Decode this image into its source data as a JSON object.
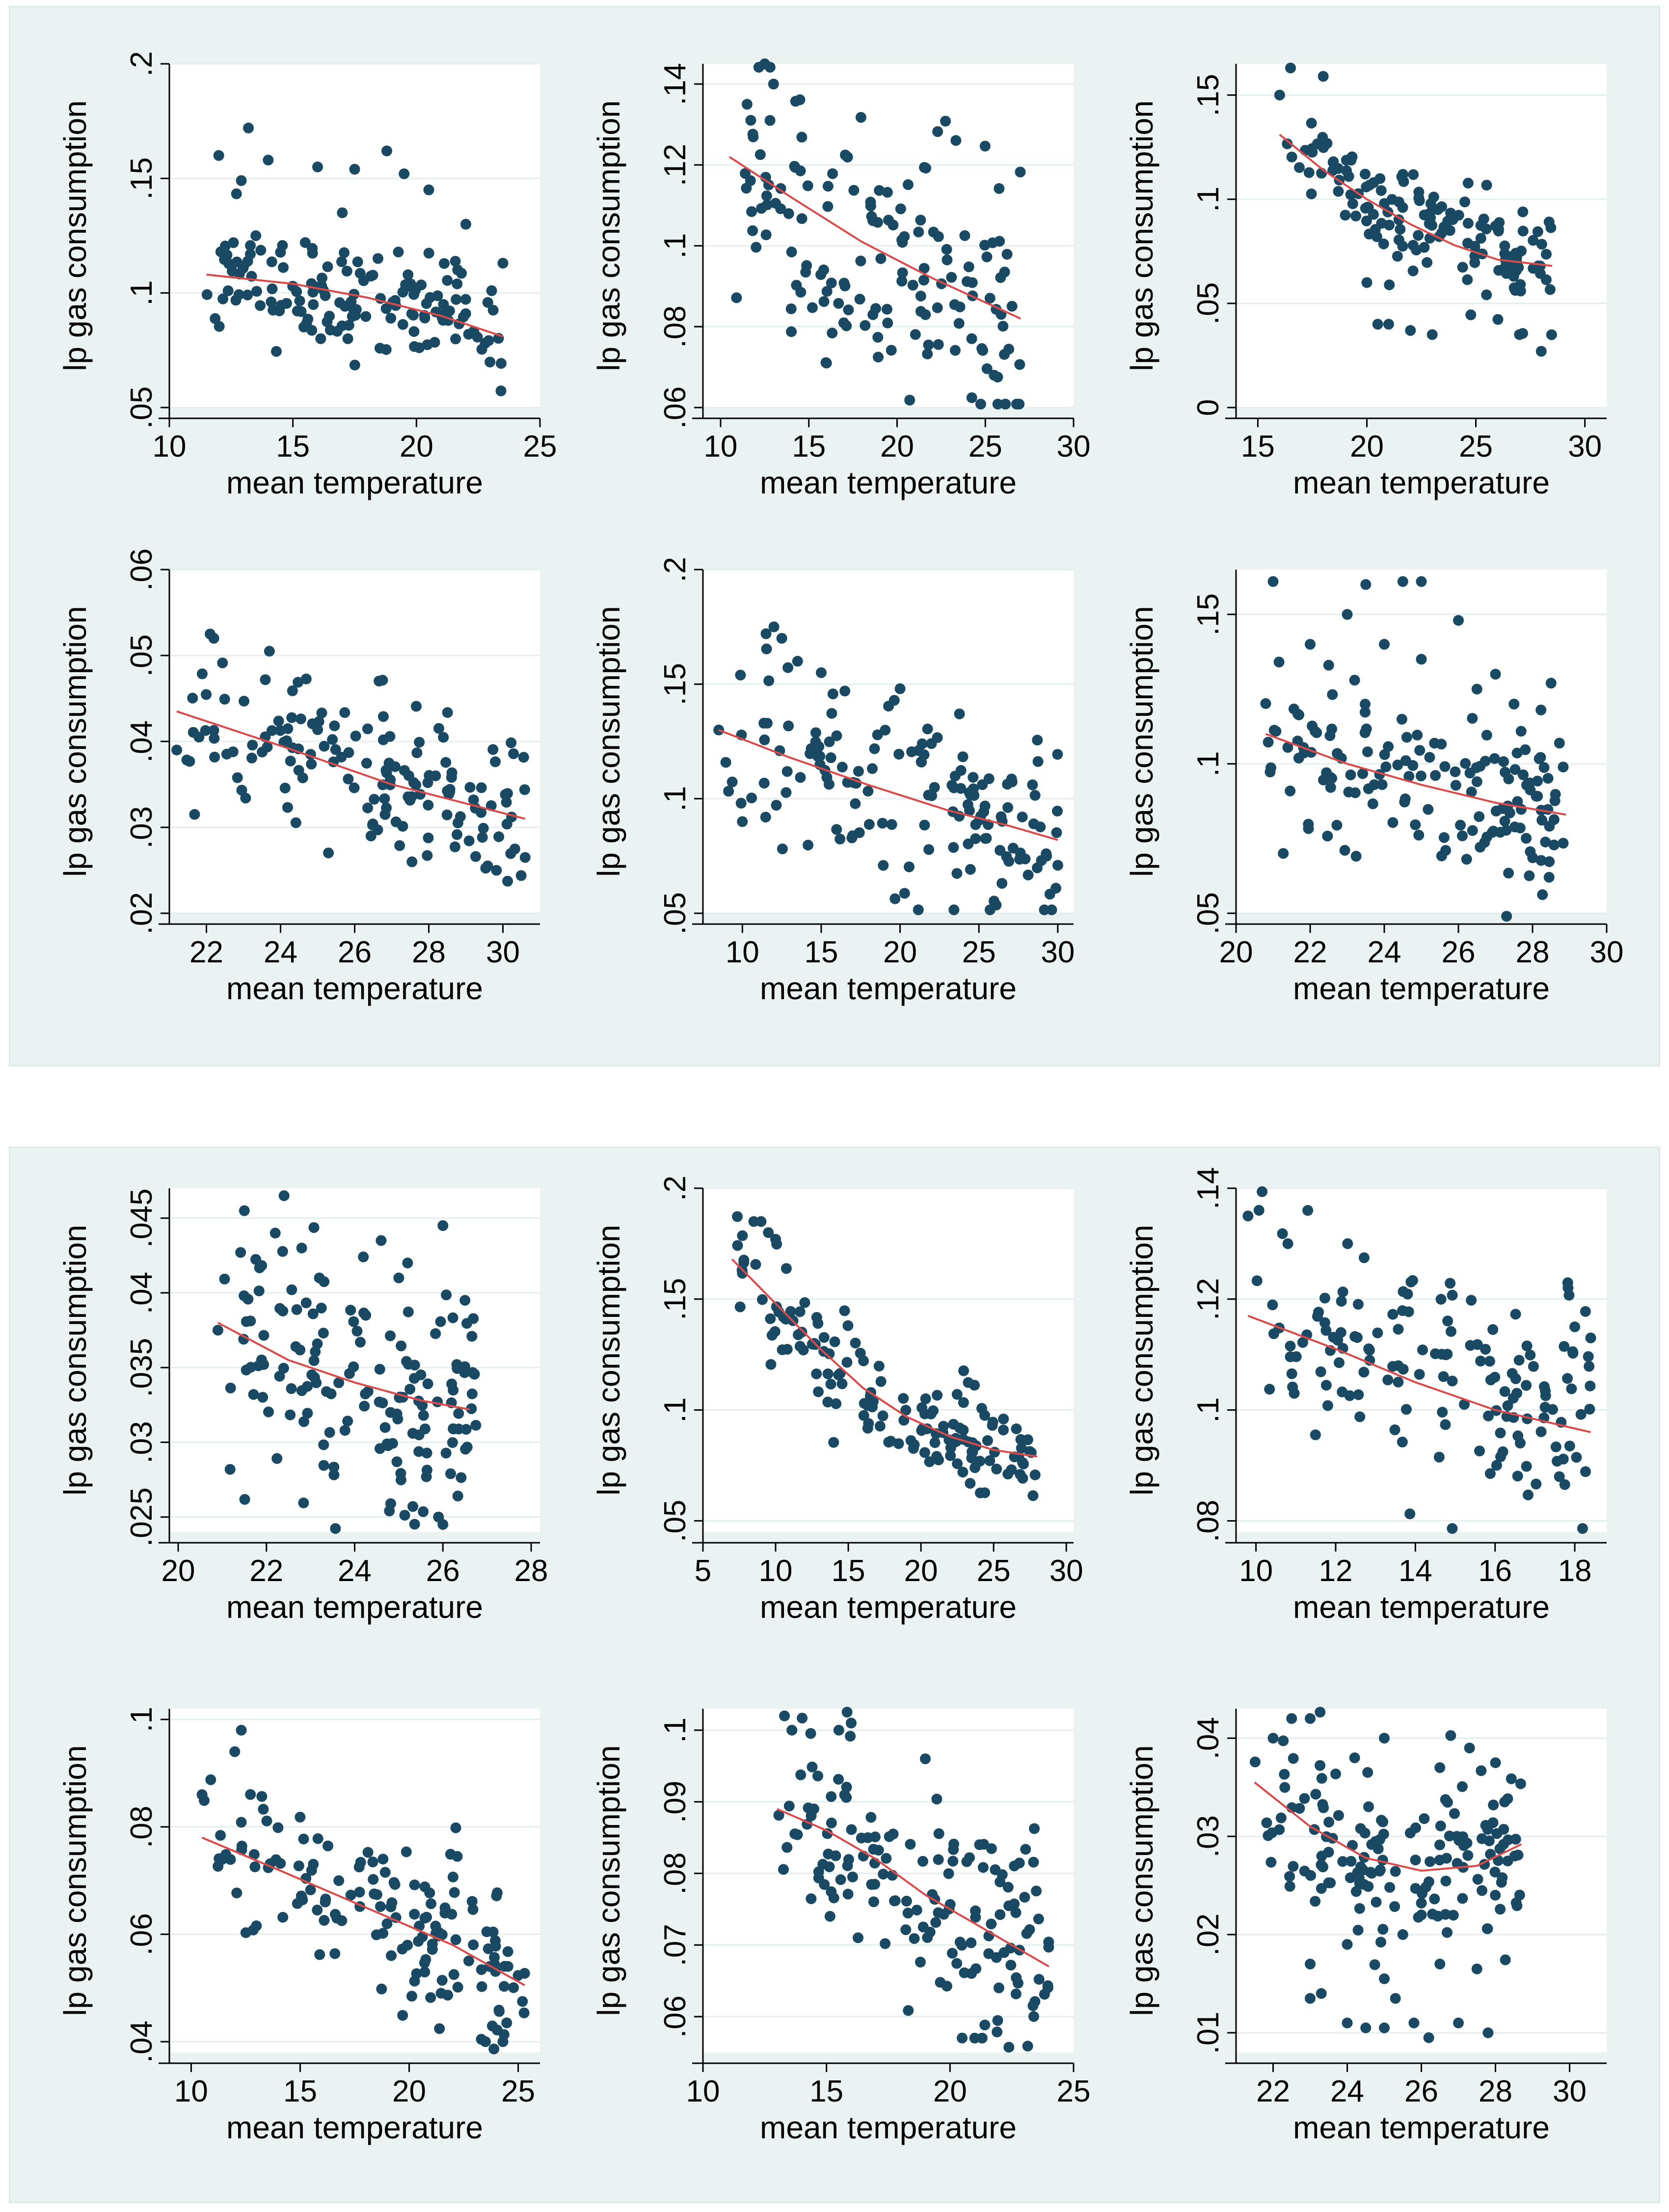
{
  "figure": {
    "groups": [
      "top",
      "bottom"
    ],
    "colors": {
      "background": "#eaf3f2",
      "plot": "#ffffff",
      "marker": "#1a4a63",
      "fit": "#d94a4a",
      "grid": "#e4eeee"
    }
  },
  "chart_data": [
    {
      "type": "scatter",
      "group": "top",
      "row": 0,
      "col": 0,
      "seed": 11,
      "xlabel": "mean temperature",
      "ylabel": "lp gas consumption",
      "xlim": [
        10,
        25
      ],
      "ylim": [
        0.05,
        0.2
      ],
      "xticks": [
        10,
        15,
        20,
        25
      ],
      "yticks": [
        0.05,
        0.1,
        0.15,
        0.2
      ],
      "xtick_labels": [
        "10",
        "15",
        "20",
        "25"
      ],
      "ytick_labels": [
        ".05",
        ".1",
        ".15",
        ".2"
      ],
      "x_range": [
        11.5,
        23.5
      ],
      "fit": [
        [
          11.5,
          0.108
        ],
        [
          15,
          0.104
        ],
        [
          18,
          0.098
        ],
        [
          21,
          0.09
        ],
        [
          23.5,
          0.081
        ]
      ],
      "spread": 0.012,
      "extra": [
        [
          12,
          0.16
        ],
        [
          13.2,
          0.172
        ],
        [
          14,
          0.158
        ],
        [
          16,
          0.155
        ],
        [
          17.5,
          0.154
        ],
        [
          18.8,
          0.162
        ],
        [
          19.5,
          0.152
        ],
        [
          20.5,
          0.145
        ],
        [
          22,
          0.13
        ],
        [
          23.5,
          0.113
        ],
        [
          13.5,
          0.125
        ],
        [
          15.5,
          0.122
        ],
        [
          17,
          0.135
        ]
      ]
    },
    {
      "type": "scatter",
      "group": "top",
      "row": 0,
      "col": 1,
      "seed": 23,
      "xlabel": "mean temperature",
      "ylabel": "lp gas consumption",
      "xlim": [
        9,
        30
      ],
      "ylim": [
        0.06,
        0.145
      ],
      "xticks": [
        10,
        15,
        20,
        25,
        30
      ],
      "yticks": [
        0.06,
        0.08,
        0.1,
        0.12,
        0.14
      ],
      "xtick_labels": [
        "10",
        "15",
        "20",
        "25",
        "30"
      ],
      "ytick_labels": [
        ".06",
        ".08",
        ".1",
        ".12",
        ".14"
      ],
      "x_range": [
        10.5,
        27
      ],
      "fit": [
        [
          10.5,
          0.122
        ],
        [
          14,
          0.112
        ],
        [
          18,
          0.101
        ],
        [
          22,
          0.092
        ],
        [
          27,
          0.082
        ]
      ],
      "spread": 0.016,
      "extra": [
        [
          12.5,
          0.145
        ],
        [
          13,
          0.14
        ],
        [
          11.5,
          0.135
        ],
        [
          12.8,
          0.131
        ],
        [
          25.5,
          0.068
        ],
        [
          16,
          0.071
        ]
      ]
    },
    {
      "type": "scatter",
      "group": "top",
      "row": 0,
      "col": 2,
      "seed": 37,
      "xlabel": "mean temperature",
      "ylabel": "lp gas consumption",
      "xlim": [
        14,
        31
      ],
      "ylim": [
        0,
        0.165
      ],
      "xticks": [
        15,
        20,
        25,
        30
      ],
      "yticks": [
        0,
        0.05,
        0.1,
        0.15
      ],
      "xtick_labels": [
        "15",
        "20",
        "25",
        "30"
      ],
      "ytick_labels": [
        "0",
        ".05",
        ".1",
        ".15"
      ],
      "x_range": [
        16,
        28.5
      ],
      "fit": [
        [
          16,
          0.131
        ],
        [
          18,
          0.114
        ],
        [
          20,
          0.1
        ],
        [
          22,
          0.088
        ],
        [
          24,
          0.078
        ],
        [
          26,
          0.071
        ],
        [
          28.5,
          0.068
        ]
      ],
      "spread": 0.014,
      "extra": [
        [
          16.5,
          0.163
        ],
        [
          16,
          0.15
        ],
        [
          18,
          0.159
        ],
        [
          20.5,
          0.04
        ],
        [
          21,
          0.04
        ],
        [
          22,
          0.037
        ],
        [
          23,
          0.035
        ],
        [
          27,
          0.035
        ],
        [
          28,
          0.027
        ],
        [
          20,
          0.06
        ]
      ]
    },
    {
      "type": "scatter",
      "group": "top",
      "row": 1,
      "col": 0,
      "seed": 41,
      "xlabel": "mean temperature",
      "ylabel": "lp gas consumption",
      "xlim": [
        21,
        31
      ],
      "ylim": [
        0.02,
        0.06
      ],
      "xticks": [
        22,
        24,
        26,
        28,
        30
      ],
      "yticks": [
        0.02,
        0.03,
        0.04,
        0.05,
        0.06
      ],
      "xtick_labels": [
        "22",
        "24",
        "26",
        "28",
        "30"
      ],
      "ytick_labels": [
        ".02",
        ".03",
        ".04",
        ".05",
        ".06"
      ],
      "x_range": [
        21.2,
        30.6
      ],
      "fit": [
        [
          21.2,
          0.0435
        ],
        [
          24,
          0.0395
        ],
        [
          27,
          0.035
        ],
        [
          30.6,
          0.031
        ]
      ],
      "spread": 0.0045,
      "extra": [
        [
          22.1,
          0.0525
        ],
        [
          22.2,
          0.052
        ],
        [
          30.6,
          0.0265
        ],
        [
          21.2,
          0.039
        ],
        [
          21.8,
          0.0405
        ],
        [
          23.7,
          0.0505
        ]
      ]
    },
    {
      "type": "scatter",
      "group": "top",
      "row": 1,
      "col": 1,
      "seed": 53,
      "xlabel": "mean temperature",
      "ylabel": "lp gas consumption",
      "xlim": [
        7.5,
        31
      ],
      "ylim": [
        0.05,
        0.2
      ],
      "xticks": [
        10,
        15,
        20,
        25,
        30
      ],
      "yticks": [
        0.05,
        0.1,
        0.15,
        0.2
      ],
      "xtick_labels": [
        "10",
        "15",
        "20",
        "25",
        "30"
      ],
      "ytick_labels": [
        ".05",
        ".1",
        ".15",
        ".2"
      ],
      "x_range": [
        8.5,
        30
      ],
      "fit": [
        [
          8.5,
          0.13
        ],
        [
          13,
          0.118
        ],
        [
          18,
          0.106
        ],
        [
          23,
          0.095
        ],
        [
          27,
          0.088
        ],
        [
          30,
          0.082
        ]
      ],
      "spread": 0.02,
      "extra": [
        [
          11.5,
          0.172
        ],
        [
          12,
          0.175
        ],
        [
          12.5,
          0.17
        ],
        [
          13.5,
          0.16
        ],
        [
          15,
          0.155
        ],
        [
          8.5,
          0.13
        ],
        [
          10,
          0.09
        ],
        [
          16.5,
          0.147
        ],
        [
          20,
          0.148
        ]
      ]
    },
    {
      "type": "scatter",
      "group": "top",
      "row": 1,
      "col": 2,
      "seed": 67,
      "xlabel": "mean temperature",
      "ylabel": "lp gas consumption",
      "xlim": [
        20,
        30
      ],
      "ylim": [
        0.05,
        0.165
      ],
      "xticks": [
        20,
        22,
        24,
        26,
        28,
        30
      ],
      "yticks": [
        0.05,
        0.1,
        0.15
      ],
      "xtick_labels": [
        "20",
        "22",
        "24",
        "26",
        "28",
        "30"
      ],
      "ytick_labels": [
        ".05",
        ".1",
        ".15"
      ],
      "x_range": [
        20.8,
        28.9
      ],
      "fit": [
        [
          20.8,
          0.11
        ],
        [
          23,
          0.1
        ],
        [
          25,
          0.093
        ],
        [
          27,
          0.087
        ],
        [
          28.9,
          0.083
        ]
      ],
      "spread": 0.013,
      "extra": [
        [
          21,
          0.161
        ],
        [
          23.5,
          0.16
        ],
        [
          24.5,
          0.161
        ],
        [
          25,
          0.161
        ],
        [
          22,
          0.14
        ],
        [
          23,
          0.15
        ],
        [
          24,
          0.14
        ],
        [
          25,
          0.135
        ],
        [
          26,
          0.148
        ],
        [
          27,
          0.13
        ],
        [
          27.5,
          0.12
        ],
        [
          28.5,
          0.127
        ],
        [
          26.5,
          0.125
        ],
        [
          23.2,
          0.128
        ],
        [
          22.5,
          0.133
        ],
        [
          27.3,
          0.049
        ]
      ]
    },
    {
      "type": "scatter",
      "group": "bottom",
      "row": 0,
      "col": 0,
      "seed": 71,
      "xlabel": "mean temperature",
      "ylabel": "lp gas consumption",
      "xlim": [
        19.8,
        28.2
      ],
      "ylim": [
        0.024,
        0.047
      ],
      "xticks": [
        20,
        22,
        24,
        26,
        28
      ],
      "yticks": [
        0.025,
        0.03,
        0.035,
        0.04,
        0.045
      ],
      "xtick_labels": [
        "20",
        "22",
        "24",
        "26",
        "28"
      ],
      "ytick_labels": [
        ".025",
        ".03",
        ".035",
        ".04",
        ".045"
      ],
      "x_range": [
        20.9,
        26.8
      ],
      "fit": [
        [
          20.9,
          0.038
        ],
        [
          22.5,
          0.0355
        ],
        [
          24,
          0.034
        ],
        [
          25.5,
          0.0328
        ],
        [
          26.6,
          0.0322
        ]
      ],
      "spread": 0.0042,
      "extra": [
        [
          21.5,
          0.0455
        ],
        [
          22.4,
          0.0465
        ],
        [
          22.2,
          0.044
        ],
        [
          22.8,
          0.043
        ],
        [
          23.2,
          0.041
        ],
        [
          24.6,
          0.0435
        ],
        [
          25.2,
          0.042
        ],
        [
          25,
          0.041
        ],
        [
          26,
          0.0445
        ],
        [
          26.5,
          0.0395
        ],
        [
          26,
          0.0245
        ],
        [
          25.9,
          0.025
        ],
        [
          20.9,
          0.0375
        ]
      ]
    },
    {
      "type": "scatter",
      "group": "bottom",
      "row": 0,
      "col": 1,
      "seed": 83,
      "xlabel": "mean temperature",
      "ylabel": "lp gas consumption",
      "xlim": [
        5,
        30.5
      ],
      "ylim": [
        0.045,
        0.2
      ],
      "xticks": [
        5,
        10,
        15,
        20,
        25,
        30
      ],
      "yticks": [
        0.05,
        0.1,
        0.15,
        0.2
      ],
      "xtick_labels": [
        "5",
        "10",
        "15",
        "20",
        "25",
        "30"
      ],
      "ytick_labels": [
        ".05",
        ".1",
        ".15",
        ".2"
      ],
      "x_range": [
        7,
        28
      ],
      "fit": [
        [
          7,
          0.168
        ],
        [
          10,
          0.148
        ],
        [
          13,
          0.128
        ],
        [
          16,
          0.11
        ],
        [
          19,
          0.097
        ],
        [
          22,
          0.088
        ],
        [
          25,
          0.082
        ],
        [
          28,
          0.079
        ]
      ],
      "spread": 0.011,
      "extra": [
        [
          8.5,
          0.185
        ],
        [
          9,
          0.185
        ],
        [
          9.5,
          0.18
        ],
        [
          10,
          0.177
        ]
      ]
    },
    {
      "type": "scatter",
      "group": "bottom",
      "row": 0,
      "col": 2,
      "seed": 97,
      "xlabel": "mean temperature",
      "ylabel": "lp gas consumption",
      "xlim": [
        9.5,
        18.8
      ],
      "ylim": [
        0.078,
        0.14
      ],
      "xticks": [
        10,
        12,
        14,
        16,
        18
      ],
      "yticks": [
        0.08,
        0.1,
        0.12,
        0.14
      ],
      "xtick_labels": [
        "10",
        "12",
        "14",
        "16",
        "18"
      ],
      "ytick_labels": [
        ".08",
        ".1",
        ".12",
        ".14"
      ],
      "x_range": [
        9.8,
        18.4
      ],
      "fit": [
        [
          9.8,
          0.117
        ],
        [
          12,
          0.111
        ],
        [
          14,
          0.105
        ],
        [
          16,
          0.1
        ],
        [
          18.4,
          0.096
        ]
      ],
      "spread": 0.012,
      "extra": [
        [
          9.8,
          0.135
        ],
        [
          11.3,
          0.136
        ],
        [
          12.3,
          0.13
        ],
        [
          10.8,
          0.13
        ],
        [
          18.4,
          0.113
        ],
        [
          18,
          0.115
        ]
      ]
    },
    {
      "type": "scatter",
      "group": "bottom",
      "row": 1,
      "col": 0,
      "seed": 103,
      "xlabel": "mean temperature",
      "ylabel": "lp gas consumption",
      "xlim": [
        9,
        26
      ],
      "ylim": [
        0.038,
        0.102
      ],
      "xticks": [
        10,
        15,
        20,
        25
      ],
      "yticks": [
        0.04,
        0.06,
        0.08,
        0.1
      ],
      "xtick_labels": [
        "10",
        "15",
        "20",
        "25"
      ],
      "ytick_labels": [
        ".04",
        ".06",
        ".08",
        ".1"
      ],
      "x_range": [
        10.5,
        25.3
      ],
      "fit": [
        [
          10.5,
          0.078
        ],
        [
          14,
          0.072
        ],
        [
          18,
          0.065
        ],
        [
          22,
          0.058
        ],
        [
          25.3,
          0.0505
        ]
      ],
      "spread": 0.008,
      "extra": [
        [
          12.3,
          0.098
        ],
        [
          12,
          0.094
        ],
        [
          10.5,
          0.086
        ],
        [
          23.5,
          0.04
        ],
        [
          24.3,
          0.04
        ]
      ]
    },
    {
      "type": "scatter",
      "group": "bottom",
      "row": 1,
      "col": 1,
      "seed": 113,
      "xlabel": "mean temperature",
      "ylabel": "lp gas consumption",
      "xlim": [
        10,
        25
      ],
      "ylim": [
        0.055,
        0.103
      ],
      "xticks": [
        10,
        15,
        20,
        25
      ],
      "yticks": [
        0.06,
        0.07,
        0.08,
        0.09,
        0.1
      ],
      "xtick_labels": [
        "10",
        "15",
        "20",
        "25"
      ],
      "ytick_labels": [
        ".06",
        ".07",
        ".08",
        ".09",
        ".1"
      ],
      "x_range": [
        13,
        24
      ],
      "fit": [
        [
          13,
          0.089
        ],
        [
          15,
          0.086
        ],
        [
          17,
          0.082
        ],
        [
          19,
          0.077
        ],
        [
          21,
          0.073
        ],
        [
          23,
          0.069
        ],
        [
          24,
          0.067
        ]
      ],
      "spread": 0.0075,
      "extra": [
        [
          13.3,
          0.102
        ],
        [
          13.6,
          0.1
        ],
        [
          15.5,
          0.1
        ],
        [
          16,
          0.101
        ],
        [
          19,
          0.096
        ],
        [
          21,
          0.057
        ],
        [
          21.3,
          0.057
        ]
      ]
    },
    {
      "type": "scatter",
      "group": "bottom",
      "row": 1,
      "col": 2,
      "seed": 127,
      "xlabel": "mean temperature",
      "ylabel": "lp gas consumption",
      "xlim": [
        21,
        31
      ],
      "ylim": [
        0.008,
        0.043
      ],
      "xticks": [
        22,
        24,
        26,
        28,
        30
      ],
      "yticks": [
        0.01,
        0.02,
        0.03,
        0.04
      ],
      "xtick_labels": [
        "22",
        "24",
        "26",
        "28",
        "30"
      ],
      "ytick_labels": [
        ".01",
        ".02",
        ".03",
        ".04"
      ],
      "x_range": [
        21.5,
        28.7
      ],
      "fit": [
        [
          21.5,
          0.0355
        ],
        [
          23,
          0.031
        ],
        [
          24.5,
          0.0278
        ],
        [
          26,
          0.0265
        ],
        [
          27.5,
          0.027
        ],
        [
          28.7,
          0.0292
        ]
      ],
      "spread": 0.0045,
      "extra": [
        [
          23,
          0.017
        ],
        [
          23.3,
          0.014
        ],
        [
          24,
          0.011
        ],
        [
          24.5,
          0.0105
        ],
        [
          25,
          0.0155
        ],
        [
          25.3,
          0.0135
        ],
        [
          25.8,
          0.011
        ],
        [
          26.2,
          0.0095
        ],
        [
          26.5,
          0.017
        ],
        [
          27,
          0.011
        ],
        [
          27.5,
          0.0165
        ],
        [
          27.8,
          0.01
        ],
        [
          23,
          0.0135
        ],
        [
          25,
          0.0105
        ],
        [
          24.2,
          0.038
        ],
        [
          25,
          0.04
        ],
        [
          26.5,
          0.037
        ],
        [
          27.3,
          0.039
        ],
        [
          28,
          0.0375
        ],
        [
          22,
          0.04
        ],
        [
          23,
          0.042
        ],
        [
          22.5,
          0.042
        ],
        [
          24,
          0.019
        ],
        [
          25.5,
          0.02
        ],
        [
          26,
          0.022
        ]
      ]
    }
  ]
}
